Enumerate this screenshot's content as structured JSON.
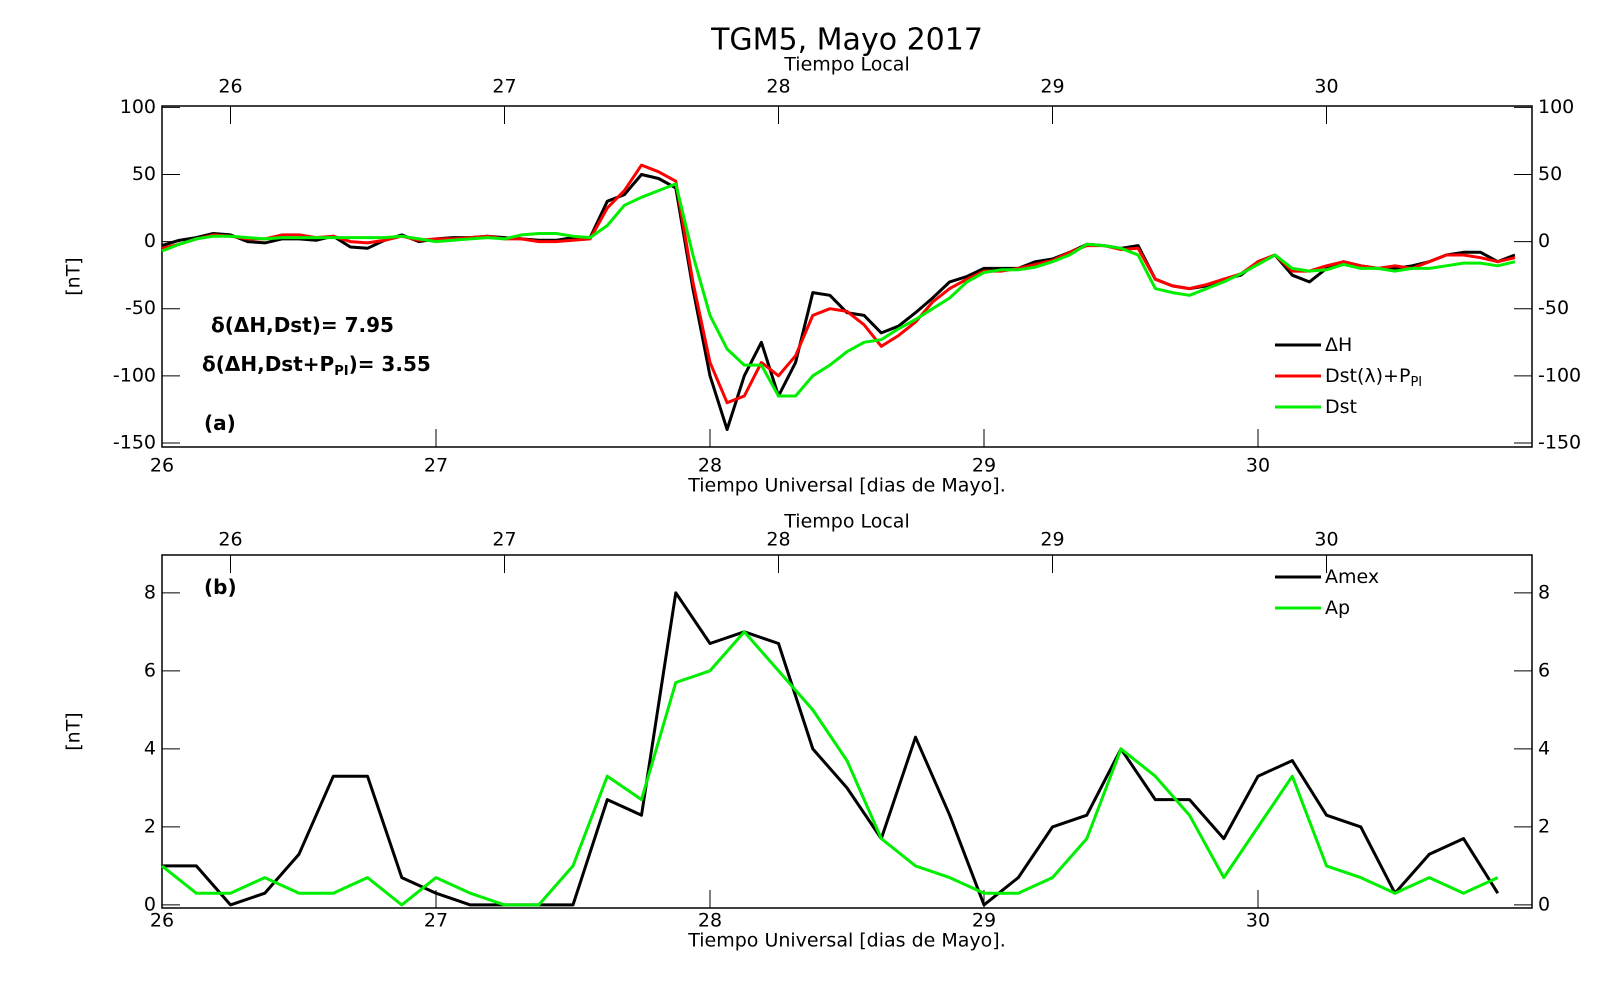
{
  "chart_data": [
    {
      "type": "line",
      "title": "TGM5, Mayo 2017",
      "xlabel": "Tiempo Universal [dias de Mayo].",
      "x2label": "Tiempo Local",
      "ylabel": "[nT]",
      "xlim": [
        26,
        31
      ],
      "xticks": [
        26,
        27,
        28,
        29,
        30
      ],
      "x2ticks": [
        {
          "value": 26.25,
          "label": "26"
        },
        {
          "value": 27.25,
          "label": "27"
        },
        {
          "value": 28.25,
          "label": "28"
        },
        {
          "value": 29.25,
          "label": "29"
        },
        {
          "value": 30.25,
          "label": "30"
        }
      ],
      "ylim": [
        -153,
        101
      ],
      "yticks": [
        -150,
        -100,
        -50,
        0,
        50,
        100
      ],
      "legend_position": "lower right",
      "annotations": [
        {
          "text": "δ(ΔH,Dst)= 7.95"
        },
        {
          "text": "δ(ΔH,Dst+P",
          "sub": "PI",
          "tail": ")= 3.55"
        },
        {
          "text": "(a)"
        }
      ],
      "x": [
        26,
        26.0625,
        26.125,
        26.1875,
        26.25,
        26.3125,
        26.375,
        26.4375,
        26.5,
        26.5625,
        26.625,
        26.6875,
        26.75,
        26.8125,
        26.875,
        26.9375,
        27,
        27.0625,
        27.125,
        27.1875,
        27.25,
        27.3125,
        27.375,
        27.4375,
        27.5,
        27.5625,
        27.625,
        27.6875,
        27.75,
        27.8125,
        27.875,
        27.9375,
        28,
        28.0625,
        28.125,
        28.1875,
        28.25,
        28.3125,
        28.375,
        28.4375,
        28.5,
        28.5625,
        28.625,
        28.6875,
        28.75,
        28.8125,
        28.875,
        28.9375,
        29,
        29.0625,
        29.125,
        29.1875,
        29.25,
        29.3125,
        29.375,
        29.4375,
        29.5,
        29.5625,
        29.625,
        29.6875,
        29.75,
        29.8125,
        29.875,
        29.9375,
        30,
        30.0625,
        30.125,
        30.1875,
        30.25,
        30.3125,
        30.375,
        30.4375,
        30.5,
        30.5625,
        30.625,
        30.6875,
        30.75,
        30.8125,
        30.875,
        30.9375
      ],
      "series": [
        {
          "name": "ΔH",
          "color": "#000000",
          "values": [
            -3,
            1,
            3,
            6,
            5,
            0,
            -1,
            2,
            2,
            1,
            4,
            -4,
            -5,
            1,
            5,
            0,
            2,
            3,
            3,
            4,
            3,
            2,
            1,
            1,
            3,
            3,
            30,
            35,
            50,
            47,
            40,
            -35,
            -100,
            -140,
            -100,
            -75,
            -115,
            -90,
            -38,
            -40,
            -53,
            -55,
            -68,
            -63,
            -53,
            -42,
            -30,
            -26,
            -20,
            -20,
            -20,
            -15,
            -13,
            -8,
            -2,
            -3,
            -5,
            -3,
            -28,
            -33,
            -35,
            -33,
            -28,
            -25,
            -15,
            -10,
            -25,
            -30,
            -20,
            -15,
            -18,
            -20,
            -20,
            -18,
            -15,
            -10,
            -8,
            -8,
            -15,
            -10
          ]
        },
        {
          "name": "Dst(λ)+P",
          "name_sub": "PI",
          "color": "#ff0000",
          "values": [
            -5,
            -2,
            2,
            5,
            4,
            2,
            2,
            5,
            5,
            3,
            4,
            0,
            -1,
            1,
            4,
            1,
            2,
            2,
            3,
            4,
            2,
            2,
            0,
            0,
            1,
            2,
            25,
            38,
            57,
            52,
            45,
            -30,
            -90,
            -120,
            -115,
            -90,
            -100,
            -85,
            -55,
            -50,
            -52,
            -62,
            -78,
            -70,
            -60,
            -45,
            -35,
            -28,
            -22,
            -22,
            -20,
            -17,
            -14,
            -8,
            -3,
            -3,
            -6,
            -5,
            -28,
            -33,
            -35,
            -32,
            -28,
            -24,
            -15,
            -10,
            -22,
            -22,
            -18,
            -15,
            -18,
            -20,
            -18,
            -20,
            -15,
            -10,
            -10,
            -12,
            -15,
            -12
          ]
        },
        {
          "name": "Dst",
          "color": "#00ee00",
          "values": [
            -7,
            -2,
            2,
            4,
            4,
            3,
            2,
            3,
            3,
            3,
            3,
            3,
            3,
            3,
            4,
            2,
            0,
            1,
            2,
            3,
            2,
            5,
            6,
            6,
            4,
            3,
            12,
            27,
            33,
            38,
            43,
            -10,
            -55,
            -80,
            -92,
            -92,
            -115,
            -115,
            -100,
            -92,
            -82,
            -75,
            -73,
            -65,
            -58,
            -50,
            -42,
            -30,
            -23,
            -21,
            -21,
            -19,
            -15,
            -10,
            -2,
            -3,
            -5,
            -10,
            -35,
            -38,
            -40,
            -35,
            -30,
            -24,
            -17,
            -10,
            -20,
            -22,
            -21,
            -17,
            -20,
            -20,
            -22,
            -20,
            -20,
            -18,
            -16,
            -16,
            -18,
            -15
          ]
        }
      ]
    },
    {
      "type": "line",
      "xlabel": "Tiempo Universal [dias de Mayo].",
      "x2label": "Tiempo Local",
      "ylabel": "[nT]",
      "xlim": [
        26,
        31
      ],
      "xticks": [
        26,
        27,
        28,
        29,
        30
      ],
      "x2ticks": [
        {
          "value": 26.25,
          "label": "26"
        },
        {
          "value": 27.25,
          "label": "27"
        },
        {
          "value": 28.25,
          "label": "28"
        },
        {
          "value": 29.25,
          "label": "29"
        },
        {
          "value": 30.25,
          "label": "30"
        }
      ],
      "ylim": [
        -0.08,
        8.97
      ],
      "yticks": [
        0,
        2,
        4,
        6,
        8
      ],
      "legend_position": "upper right",
      "annotations": [
        {
          "text": "(b)"
        }
      ],
      "x": [
        26,
        26.125,
        26.25,
        26.375,
        26.5,
        26.625,
        26.75,
        26.875,
        27,
        27.125,
        27.25,
        27.375,
        27.5,
        27.625,
        27.75,
        27.875,
        28,
        28.125,
        28.25,
        28.375,
        28.5,
        28.625,
        28.75,
        28.875,
        29,
        29.125,
        29.25,
        29.375,
        29.5,
        29.625,
        29.75,
        29.875,
        30,
        30.125,
        30.25,
        30.375,
        30.5,
        30.625,
        30.75,
        30.875
      ],
      "series": [
        {
          "name": "Amex",
          "color": "#000000",
          "values": [
            1.0,
            1.0,
            0,
            0.3,
            1.3,
            3.3,
            3.3,
            0.7,
            0.3,
            0,
            0,
            0,
            0,
            2.7,
            2.3,
            8.0,
            6.7,
            7.0,
            6.7,
            4.0,
            3.0,
            1.7,
            4.3,
            2.3,
            0,
            0.7,
            2.0,
            2.3,
            4.0,
            2.7,
            2.7,
            1.7,
            3.3,
            3.7,
            2.3,
            2.0,
            0.3,
            1.3,
            1.7,
            0.3
          ]
        },
        {
          "name": "Ap",
          "color": "#00ee00",
          "values": [
            1.0,
            0.3,
            0.3,
            0.7,
            0.3,
            0.3,
            0.7,
            0,
            0.7,
            0.3,
            0,
            0,
            1.0,
            3.3,
            2.7,
            5.7,
            6.0,
            7.0,
            6.0,
            5.0,
            3.7,
            1.7,
            1.0,
            0.7,
            0.3,
            0.3,
            0.7,
            1.7,
            4.0,
            3.3,
            2.3,
            0.7,
            2.0,
            3.3,
            1.0,
            0.7,
            0.3,
            0.7,
            0.3,
            0.7
          ]
        }
      ]
    }
  ]
}
